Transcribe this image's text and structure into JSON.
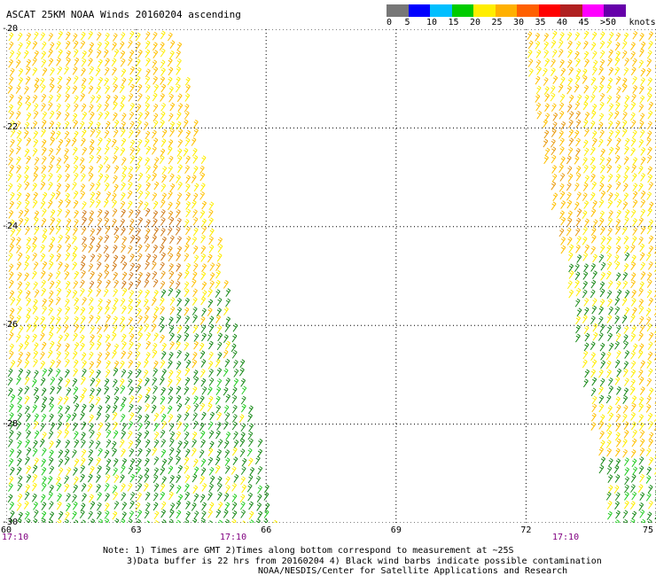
{
  "header": {
    "title": "ASCAT 25KM NOAA Winds 20160204 ascending"
  },
  "scale": {
    "unit_label": "knots",
    "labels": [
      "0",
      "5",
      "10",
      "15",
      "20",
      "25",
      "30",
      "35",
      "40",
      "45",
      ">50"
    ],
    "colors": [
      "#777777",
      "#0000ff",
      "#00bfff",
      "#00cc00",
      "#ffee00",
      "#ffb000",
      "#ff6000",
      "#ff0000",
      "#b02020",
      "#ff00ff",
      "#6600aa"
    ]
  },
  "map": {
    "lat_labels": [
      "-20",
      "-22",
      "-24",
      "-26",
      "-28",
      "-30"
    ],
    "lon_labels": [
      "60",
      "63",
      "66",
      "69",
      "72",
      "75"
    ],
    "time_labels": [
      "17:10",
      "17:10",
      "17:10"
    ]
  },
  "notes": {
    "line1": "Note: 1) Times are GMT 2)Times along bottom correspond to measurement at ~25S",
    "line2": "3)Data buffer is 22 hrs from 20160204 4) Black wind barbs indicate possible contamination",
    "line3": "NOAA/NESDIS/Center for Satellite Applications and Research"
  }
}
